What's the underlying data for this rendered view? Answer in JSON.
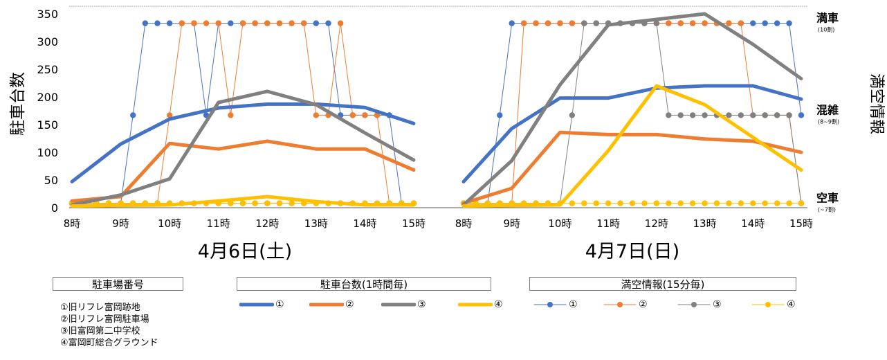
{
  "chart_data": {
    "type": "line",
    "ylabel": "駐車台数",
    "ylabel_right": "満空情報",
    "ylim": [
      0,
      350
    ],
    "yticks": [
      "0",
      "50",
      "100",
      "150",
      "200",
      "250",
      "300",
      "350"
    ],
    "grid": false,
    "status_labels": [
      {
        "label": "満車",
        "sub": "(10割)",
        "value": 333
      },
      {
        "label": "混雑",
        "sub": "(8~9割)",
        "value": 167
      },
      {
        "label": "空車",
        "sub": "(~7割)",
        "value": 8
      }
    ],
    "colors": {
      "1": "#4472C4",
      "2": "#ED7D31",
      "3": "#808080",
      "4": "#FFC000"
    },
    "panels": [
      {
        "date": "4月6日(土)",
        "hour_labels": [
          "8時",
          "9時",
          "10時",
          "11時",
          "12時",
          "13時",
          "14時",
          "15時"
        ],
        "hourly": {
          "1": [
            47,
            115,
            160,
            180,
            187,
            187,
            181,
            152
          ],
          "2": [
            12,
            20,
            116,
            106,
            120,
            106,
            106,
            68
          ],
          "3": [
            5,
            23,
            52,
            190,
            210,
            186,
            135,
            86
          ],
          "4": [
            3,
            4,
            5,
            12,
            20,
            11,
            5,
            5
          ]
        },
        "quarter": {
          "1": [
            8,
            8,
            8,
            8,
            8,
            167,
            333,
            333,
            333,
            333,
            333,
            167,
            333,
            333,
            333,
            333,
            333,
            333,
            333,
            333,
            333,
            333,
            167,
            167,
            167,
            167,
            167,
            8,
            8
          ],
          "2": [
            8,
            8,
            8,
            8,
            8,
            8,
            8,
            8,
            167,
            333,
            333,
            333,
            333,
            167,
            333,
            333,
            333,
            333,
            333,
            333,
            167,
            167,
            333,
            167,
            167,
            167,
            8,
            8,
            8
          ],
          "3": [
            8,
            8,
            8,
            8,
            8,
            8,
            8,
            8,
            8,
            8,
            8,
            8,
            8,
            8,
            8,
            8,
            8,
            8,
            8,
            8,
            8,
            8,
            8,
            8,
            8,
            8,
            8,
            8,
            8
          ],
          "4": [
            8,
            8,
            8,
            8,
            8,
            8,
            8,
            8,
            8,
            8,
            8,
            8,
            8,
            8,
            8,
            8,
            8,
            8,
            8,
            8,
            8,
            8,
            8,
            8,
            8,
            8,
            8,
            8,
            8
          ]
        }
      },
      {
        "date": "4月7日(日)",
        "hour_labels": [
          "8時",
          "9時",
          "10時",
          "11時",
          "12時",
          "13時",
          "14時",
          "15時"
        ],
        "hourly": {
          "1": [
            47,
            143,
            198,
            198,
            216,
            220,
            220,
            196
          ],
          "2": [
            8,
            35,
            136,
            132,
            132,
            124,
            120,
            100
          ],
          "3": [
            5,
            85,
            222,
            330,
            340,
            350,
            295,
            233
          ],
          "4": [
            3,
            4,
            5,
            103,
            220,
            186,
            127,
            68
          ]
        },
        "quarter": {
          "1": [
            8,
            8,
            8,
            167,
            333,
            333,
            333,
            333,
            333,
            333,
            333,
            333,
            333,
            333,
            333,
            333,
            333,
            333,
            333,
            333,
            333,
            333,
            333,
            333,
            333,
            333,
            333,
            333,
            167
          ],
          "2": [
            8,
            8,
            8,
            8,
            8,
            333,
            333,
            333,
            333,
            333,
            333,
            333,
            333,
            333,
            333,
            333,
            333,
            333,
            333,
            333,
            333,
            333,
            333,
            333,
            167,
            167,
            167,
            167,
            8
          ],
          "3": [
            8,
            8,
            8,
            8,
            8,
            8,
            8,
            8,
            8,
            167,
            333,
            333,
            333,
            333,
            333,
            333,
            333,
            167,
            167,
            167,
            167,
            167,
            167,
            167,
            167,
            167,
            167,
            167,
            8
          ],
          "4": [
            8,
            8,
            8,
            8,
            8,
            8,
            8,
            8,
            8,
            8,
            8,
            8,
            8,
            8,
            8,
            8,
            8,
            8,
            8,
            8,
            8,
            8,
            8,
            8,
            8,
            8,
            8,
            8,
            8
          ]
        }
      }
    ]
  },
  "legend": {
    "key_title": "駐車場番号",
    "keys": [
      "①旧リフレ富岡跡地",
      "②旧リフレ富岡駐車場",
      "③旧富岡第二中学校",
      "④富岡町総合グラウンド"
    ],
    "hourly_title": "駐車台数(1時間毎)",
    "quarter_title": "満空情報(15分毎)",
    "series_marks": [
      "①",
      "②",
      "③",
      "④"
    ]
  }
}
